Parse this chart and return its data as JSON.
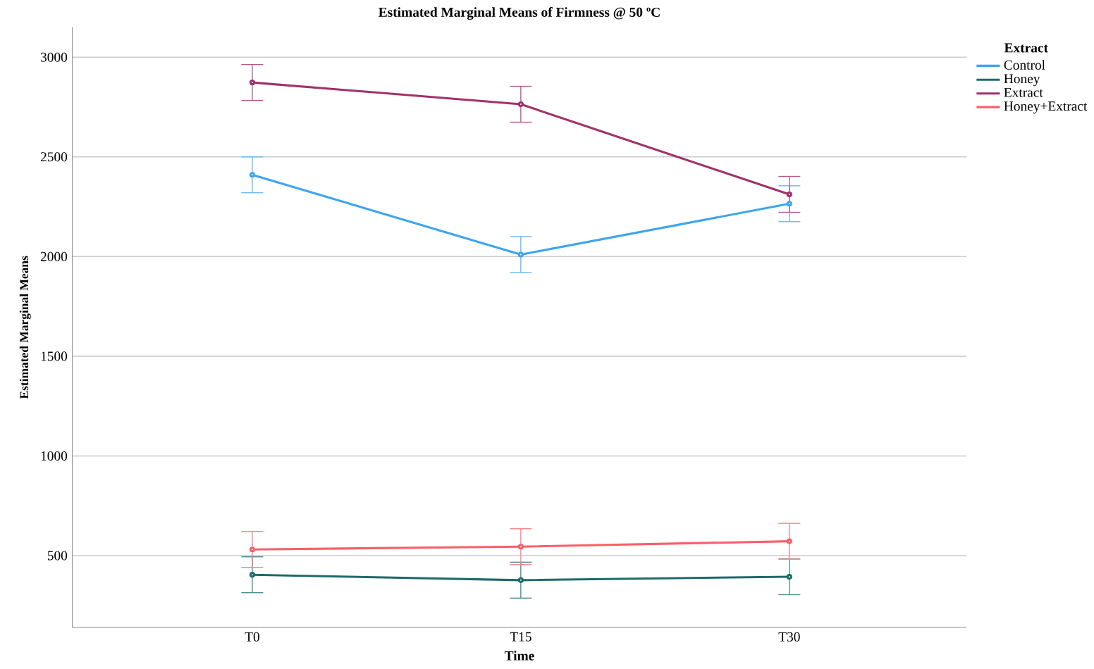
{
  "chart_data": {
    "type": "line",
    "title": "Estimated Marginal Means of Firmness @ 50 ºC",
    "xlabel": "Time",
    "ylabel": "Estimated Marginal Means",
    "legend_title": "Extract",
    "categories": [
      "T0",
      "T15",
      "T30"
    ],
    "series": [
      {
        "name": "Control",
        "color": "#3da5ee",
        "values": [
          2410,
          2010,
          2265
        ],
        "errors": [
          90,
          90,
          90
        ]
      },
      {
        "name": "Honey",
        "color": "#1d6b6b",
        "values": [
          404,
          377,
          394
        ],
        "errors": [
          90,
          90,
          90
        ]
      },
      {
        "name": "Extract",
        "color": "#a0326a",
        "values": [
          2873,
          2764,
          2312
        ],
        "errors": [
          90,
          90,
          90
        ]
      },
      {
        "name": "Honey+Extract",
        "color": "#f7606a",
        "values": [
          531,
          545,
          572
        ],
        "errors": [
          90,
          90,
          90
        ]
      }
    ],
    "ylim": [
      140,
      3150
    ],
    "yticks": [
      500,
      1000,
      1500,
      2000,
      2500,
      3000
    ],
    "grid": "y",
    "legend": "top right",
    "marker": "circle",
    "line_style": "solid"
  }
}
